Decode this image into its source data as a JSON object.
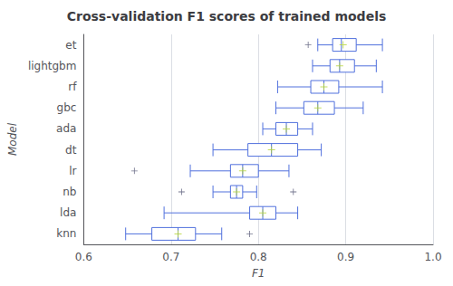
{
  "chart_data": {
    "type": "box",
    "title": "Cross-validation F1 scores of trained models",
    "xlabel": "F1",
    "ylabel": "Model",
    "orientation": "horizontal",
    "categories": [
      "et",
      "lightgbm",
      "rf",
      "gbc",
      "ada",
      "dt",
      "lr",
      "nb",
      "lda",
      "knn"
    ],
    "whislo": [
      0.868,
      0.862,
      0.822,
      0.82,
      0.805,
      0.748,
      0.722,
      0.748,
      0.692,
      0.648
    ],
    "q1": [
      0.885,
      0.882,
      0.86,
      0.852,
      0.82,
      0.788,
      0.768,
      0.768,
      0.79,
      0.678
    ],
    "med": [
      0.895,
      0.893,
      0.875,
      0.868,
      0.832,
      0.815,
      0.782,
      0.775,
      0.805,
      0.708
    ],
    "q3": [
      0.912,
      0.91,
      0.892,
      0.887,
      0.845,
      0.845,
      0.8,
      0.782,
      0.82,
      0.728
    ],
    "whishi": [
      0.942,
      0.935,
      0.942,
      0.92,
      0.862,
      0.872,
      0.835,
      0.798,
      0.845,
      0.758
    ],
    "mean": [
      0.897,
      0.893,
      0.875,
      0.868,
      0.832,
      0.815,
      0.782,
      0.775,
      0.805,
      0.708
    ],
    "fliers": [
      [
        0.857
      ],
      [],
      [],
      [],
      [],
      [],
      [
        0.658
      ],
      [
        0.712,
        0.84
      ],
      [],
      [
        0.79
      ]
    ],
    "marker": "plus",
    "xlim": [
      0.6,
      1.0
    ],
    "xticks": [
      0.6,
      0.7,
      0.8,
      0.9,
      {
        "value": 1.0,
        "label": "1.0"
      }
    ],
    "grid": true
  }
}
